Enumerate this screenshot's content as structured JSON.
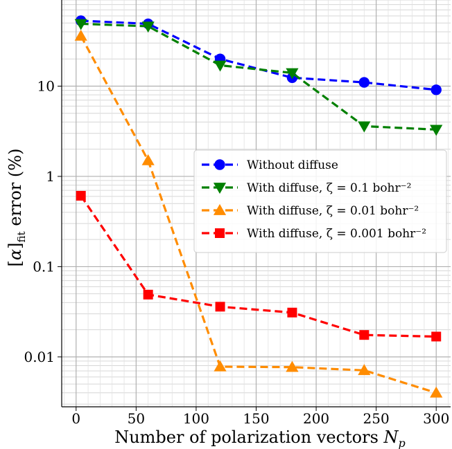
{
  "chart_data": {
    "type": "line",
    "xlabel": "Number of polarization vectors N_p",
    "ylabel": "[α]_fit error (%)",
    "xlim": [
      -12,
      312
    ],
    "ylim": [
      0.0028,
      90
    ],
    "yscale": "log",
    "grid": "on (major and minor)",
    "legend_position": "center-right",
    "x_ticks": [
      0,
      50,
      100,
      150,
      200,
      250,
      300
    ],
    "y_ticks": [
      {
        "value": 0.01,
        "label": "0.01"
      },
      {
        "value": 0.1,
        "label": "0.1"
      },
      {
        "value": 1,
        "label": "1"
      },
      {
        "value": 10,
        "label": "10"
      }
    ],
    "series": [
      {
        "name": "Without diffuse",
        "color": "#0000ff",
        "marker": "circle",
        "x": [
          4,
          60,
          120,
          180,
          240,
          300
        ],
        "y": [
          53,
          49,
          20,
          12.4,
          11,
          9.1
        ]
      },
      {
        "name": "With diffuse, ζ = 0.1 bohr⁻²",
        "color": "#008000",
        "marker": "triangle-down",
        "x": [
          4,
          60,
          120,
          180,
          240,
          300
        ],
        "y": [
          49,
          46,
          17,
          14,
          3.6,
          3.3
        ]
      },
      {
        "name": "With diffuse, ζ = 0.01 bohr⁻²",
        "color": "#ff8c00",
        "marker": "triangle-up",
        "x": [
          4,
          60,
          120,
          180,
          240,
          300
        ],
        "y": [
          36,
          1.5,
          0.0078,
          0.0077,
          0.0071,
          0.004
        ]
      },
      {
        "name": "With diffuse, ζ = 0.001 bohr⁻²",
        "color": "#ff0000",
        "marker": "square",
        "x": [
          4,
          60,
          120,
          180,
          240,
          300
        ],
        "y": [
          0.61,
          0.049,
          0.036,
          0.031,
          0.0175,
          0.0168
        ]
      }
    ]
  }
}
